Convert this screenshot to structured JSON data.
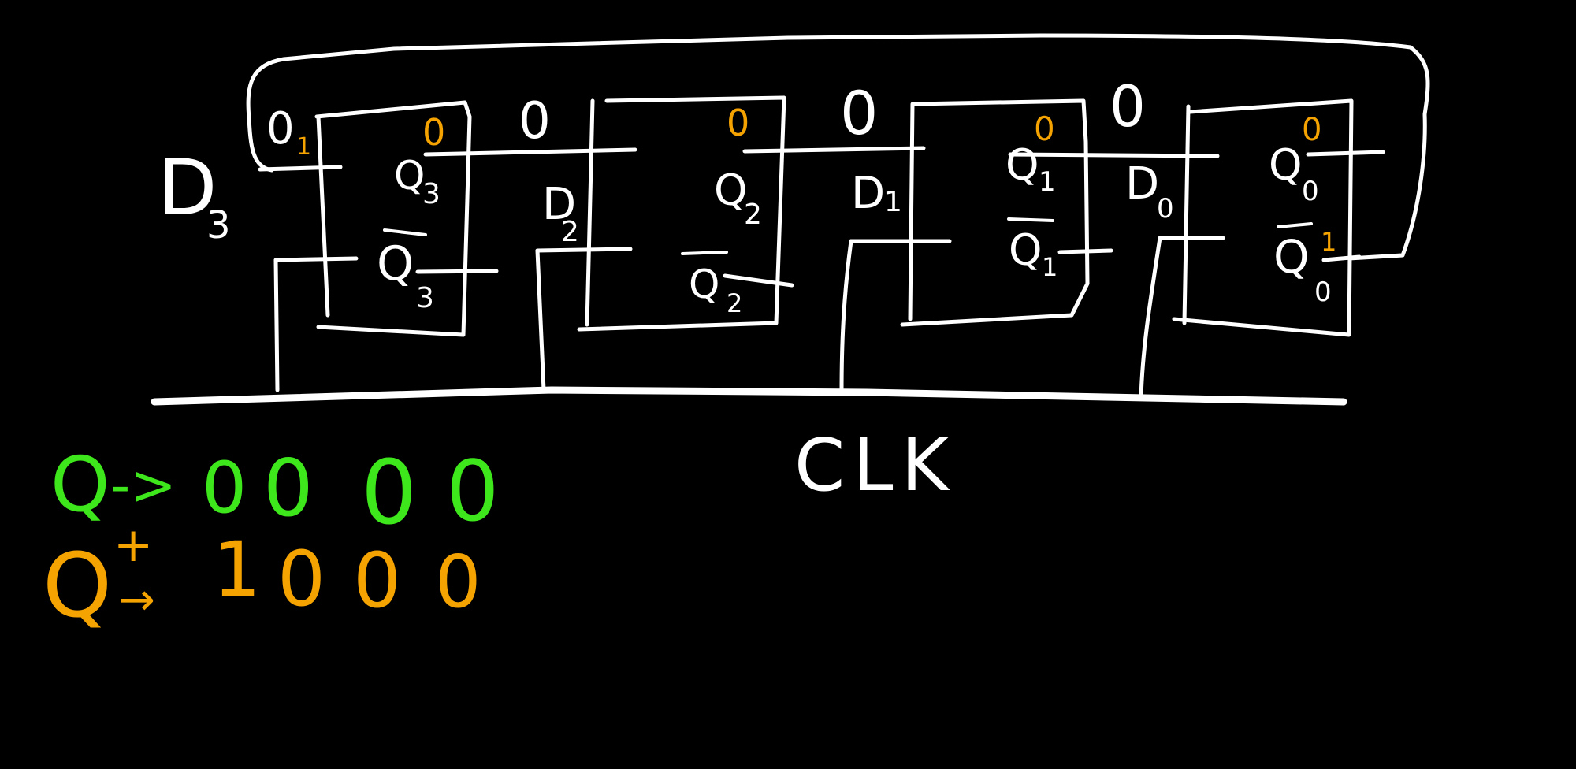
{
  "colors": {
    "background": "#000000",
    "ink": "#ffffff",
    "next_state": "#f5a300",
    "present_state": "#3ee61c"
  },
  "flip_flops": [
    {
      "d_label": "D",
      "d_sub": "3",
      "q_label": "Q",
      "q_sub": "3",
      "qbar_label": "Q",
      "qbar_sub": "3",
      "d_value": "0",
      "d_value_tick": "1",
      "q_next_value": "0",
      "qbar_next_value": ""
    },
    {
      "d_label": "D",
      "d_sub": "2",
      "q_label": "Q",
      "q_sub": "2",
      "qbar_label": "Q",
      "qbar_sub": "2",
      "d_value": "0",
      "q_next_value": "0",
      "qbar_next_value": ""
    },
    {
      "d_label": "D",
      "d_sub": "1",
      "q_label": "Q",
      "q_sub": "1",
      "qbar_label": "Q",
      "qbar_sub": "1",
      "d_value": "0",
      "q_next_value": "0",
      "qbar_next_value": ""
    },
    {
      "d_label": "D",
      "d_sub": "0",
      "q_label": "Q",
      "q_sub": "0",
      "qbar_label": "Q",
      "qbar_sub": "0",
      "d_value": "0",
      "q_next_value": "0",
      "qbar_next_value": "1"
    }
  ],
  "clock": {
    "label": "CLK"
  },
  "state_table": {
    "present": {
      "label": "Q",
      "arrow": "->",
      "values": [
        "0",
        "0",
        "0",
        "0"
      ]
    },
    "next": {
      "label": "Q",
      "superscript": "+",
      "arrow": "→",
      "values": [
        "1",
        "0",
        "0",
        "0"
      ]
    }
  }
}
